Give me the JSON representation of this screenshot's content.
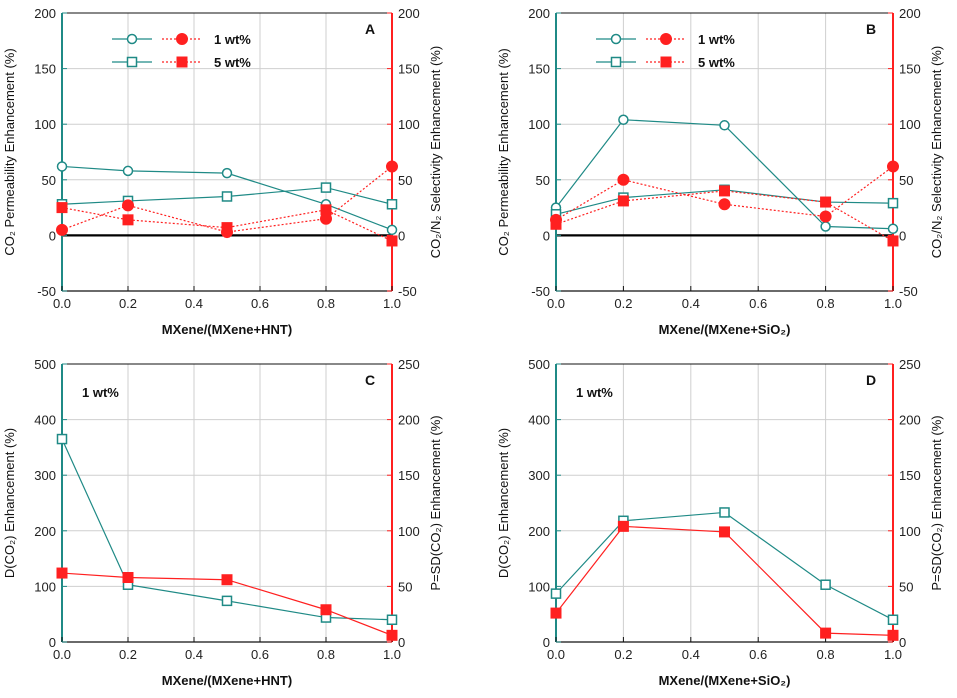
{
  "chart_data": [
    {
      "id": "A",
      "type": "line",
      "panel_label": "A",
      "xlabel": "MXene/(MXene+HNT)",
      "ylabel_left": "CO₂ Permeability Enhancement (%)",
      "ylabel_right": "CO₂/N₂ Selectivity Enhancement (%)",
      "xlim": [
        0,
        1
      ],
      "xticks": [
        "0.0",
        "0.2",
        "0.4",
        "0.6",
        "0.8",
        "1.0"
      ],
      "ylim_left": [
        -50,
        200
      ],
      "yticks_left": [
        "-50",
        "0",
        "50",
        "100",
        "150",
        "200"
      ],
      "ylim_right": [
        -50,
        200
      ],
      "yticks_right": [
        "-50",
        "0",
        "50",
        "100",
        "150",
        "200"
      ],
      "x": [
        0,
        0.2,
        0.5,
        0.8,
        1.0
      ],
      "legend": [
        {
          "label": "1 wt%",
          "open": "circle",
          "filled": "circle"
        },
        {
          "label": "5 wt%",
          "open": "square",
          "filled": "square"
        }
      ],
      "series": [
        {
          "name": "1 wt% permeability",
          "axis": "left",
          "marker": "circle-open",
          "color": "#1f8a86",
          "style": "solid",
          "values": [
            62,
            58,
            56,
            28,
            5
          ]
        },
        {
          "name": "5 wt% permeability",
          "axis": "left",
          "marker": "square-open",
          "color": "#1f8a86",
          "style": "solid",
          "values": [
            28,
            31,
            35,
            43,
            28
          ]
        },
        {
          "name": "1 wt% selectivity",
          "axis": "right",
          "marker": "circle-filled",
          "color": "#ff2020",
          "style": "dotted",
          "values": [
            5,
            27,
            3,
            15,
            62
          ]
        },
        {
          "name": "5 wt% selectivity",
          "axis": "right",
          "marker": "square-filled",
          "color": "#ff2020",
          "style": "dotted",
          "values": [
            25,
            14,
            7,
            23,
            -5
          ]
        }
      ]
    },
    {
      "id": "B",
      "type": "line",
      "panel_label": "B",
      "xlabel": "MXene/(MXene+SiO₂)",
      "ylabel_left": "CO₂ Permeability Enhancement (%)",
      "ylabel_right": "CO₂/N₂ Selectivity Enhancement (%)",
      "xlim": [
        0,
        1
      ],
      "xticks": [
        "0.0",
        "0.2",
        "0.4",
        "0.6",
        "0.8",
        "1.0"
      ],
      "ylim_left": [
        -50,
        200
      ],
      "yticks_left": [
        "-50",
        "0",
        "50",
        "100",
        "150",
        "200"
      ],
      "ylim_right": [
        -50,
        200
      ],
      "yticks_right": [
        "-50",
        "0",
        "50",
        "100",
        "150",
        "200"
      ],
      "x": [
        0,
        0.2,
        0.5,
        0.8,
        1.0
      ],
      "legend": [
        {
          "label": "1 wt%",
          "open": "circle",
          "filled": "circle"
        },
        {
          "label": "5 wt%",
          "open": "square",
          "filled": "square"
        }
      ],
      "series": [
        {
          "name": "1 wt% permeability",
          "axis": "left",
          "marker": "circle-open",
          "color": "#1f8a86",
          "style": "solid",
          "values": [
            25,
            104,
            99,
            8,
            6
          ]
        },
        {
          "name": "5 wt% permeability",
          "axis": "left",
          "marker": "square-open",
          "color": "#1f8a86",
          "style": "solid",
          "values": [
            19,
            34,
            41,
            30,
            29
          ]
        },
        {
          "name": "1 wt% selectivity",
          "axis": "right",
          "marker": "circle-filled",
          "color": "#ff2020",
          "style": "dotted",
          "values": [
            14,
            50,
            28,
            17,
            62
          ]
        },
        {
          "name": "5 wt% selectivity",
          "axis": "right",
          "marker": "square-filled",
          "color": "#ff2020",
          "style": "dotted",
          "values": [
            10,
            31,
            40,
            30,
            -5
          ]
        }
      ]
    },
    {
      "id": "C",
      "type": "line",
      "panel_label": "C",
      "annotation": "1 wt%",
      "xlabel": "MXene/(MXene+HNT)",
      "ylabel_left": "D(CO₂) Enhancement (%)",
      "ylabel_right": "P=SD(CO₂) Enhancement (%)",
      "xlim": [
        0,
        1
      ],
      "xticks": [
        "0.0",
        "0.2",
        "0.4",
        "0.6",
        "0.8",
        "1.0"
      ],
      "ylim_left": [
        0,
        500
      ],
      "yticks_left": [
        "0",
        "100",
        "200",
        "300",
        "400",
        "500"
      ],
      "ylim_right": [
        0,
        250
      ],
      "yticks_right": [
        "0",
        "50",
        "100",
        "150",
        "200",
        "250"
      ],
      "x": [
        0,
        0.2,
        0.5,
        0.8,
        1.0
      ],
      "series": [
        {
          "name": "D(CO₂)",
          "axis": "left",
          "marker": "square-open",
          "color": "#1f8a86",
          "style": "solid",
          "values": [
            365,
            103,
            74,
            44,
            40
          ]
        },
        {
          "name": "P=SD(CO₂)",
          "axis": "right",
          "marker": "square-filled",
          "color": "#ff2020",
          "style": "solid",
          "values": [
            62,
            58,
            56,
            29,
            6
          ]
        }
      ]
    },
    {
      "id": "D",
      "type": "line",
      "panel_label": "D",
      "annotation": "1 wt%",
      "xlabel": "MXene/(MXene+SiO₂)",
      "ylabel_left": "D(CO₂) Enhancement (%)",
      "ylabel_right": "P=SD(CO₂) Enhancement (%)",
      "xlim": [
        0,
        1
      ],
      "xticks": [
        "0.0",
        "0.2",
        "0.4",
        "0.6",
        "0.8",
        "1.0"
      ],
      "ylim_left": [
        0,
        500
      ],
      "yticks_left": [
        "0",
        "100",
        "200",
        "300",
        "400",
        "500"
      ],
      "ylim_right": [
        0,
        250
      ],
      "yticks_right": [
        "0",
        "50",
        "100",
        "150",
        "200",
        "250"
      ],
      "x": [
        0,
        0.2,
        0.5,
        0.8,
        1.0
      ],
      "series": [
        {
          "name": "D(CO₂)",
          "axis": "left",
          "marker": "square-open",
          "color": "#1f8a86",
          "style": "solid",
          "values": [
            87,
            218,
            233,
            103,
            40
          ]
        },
        {
          "name": "P=SD(CO₂)",
          "axis": "right",
          "marker": "square-filled",
          "color": "#ff2020",
          "style": "solid",
          "values": [
            26,
            104,
            99,
            8,
            6
          ]
        }
      ]
    }
  ]
}
